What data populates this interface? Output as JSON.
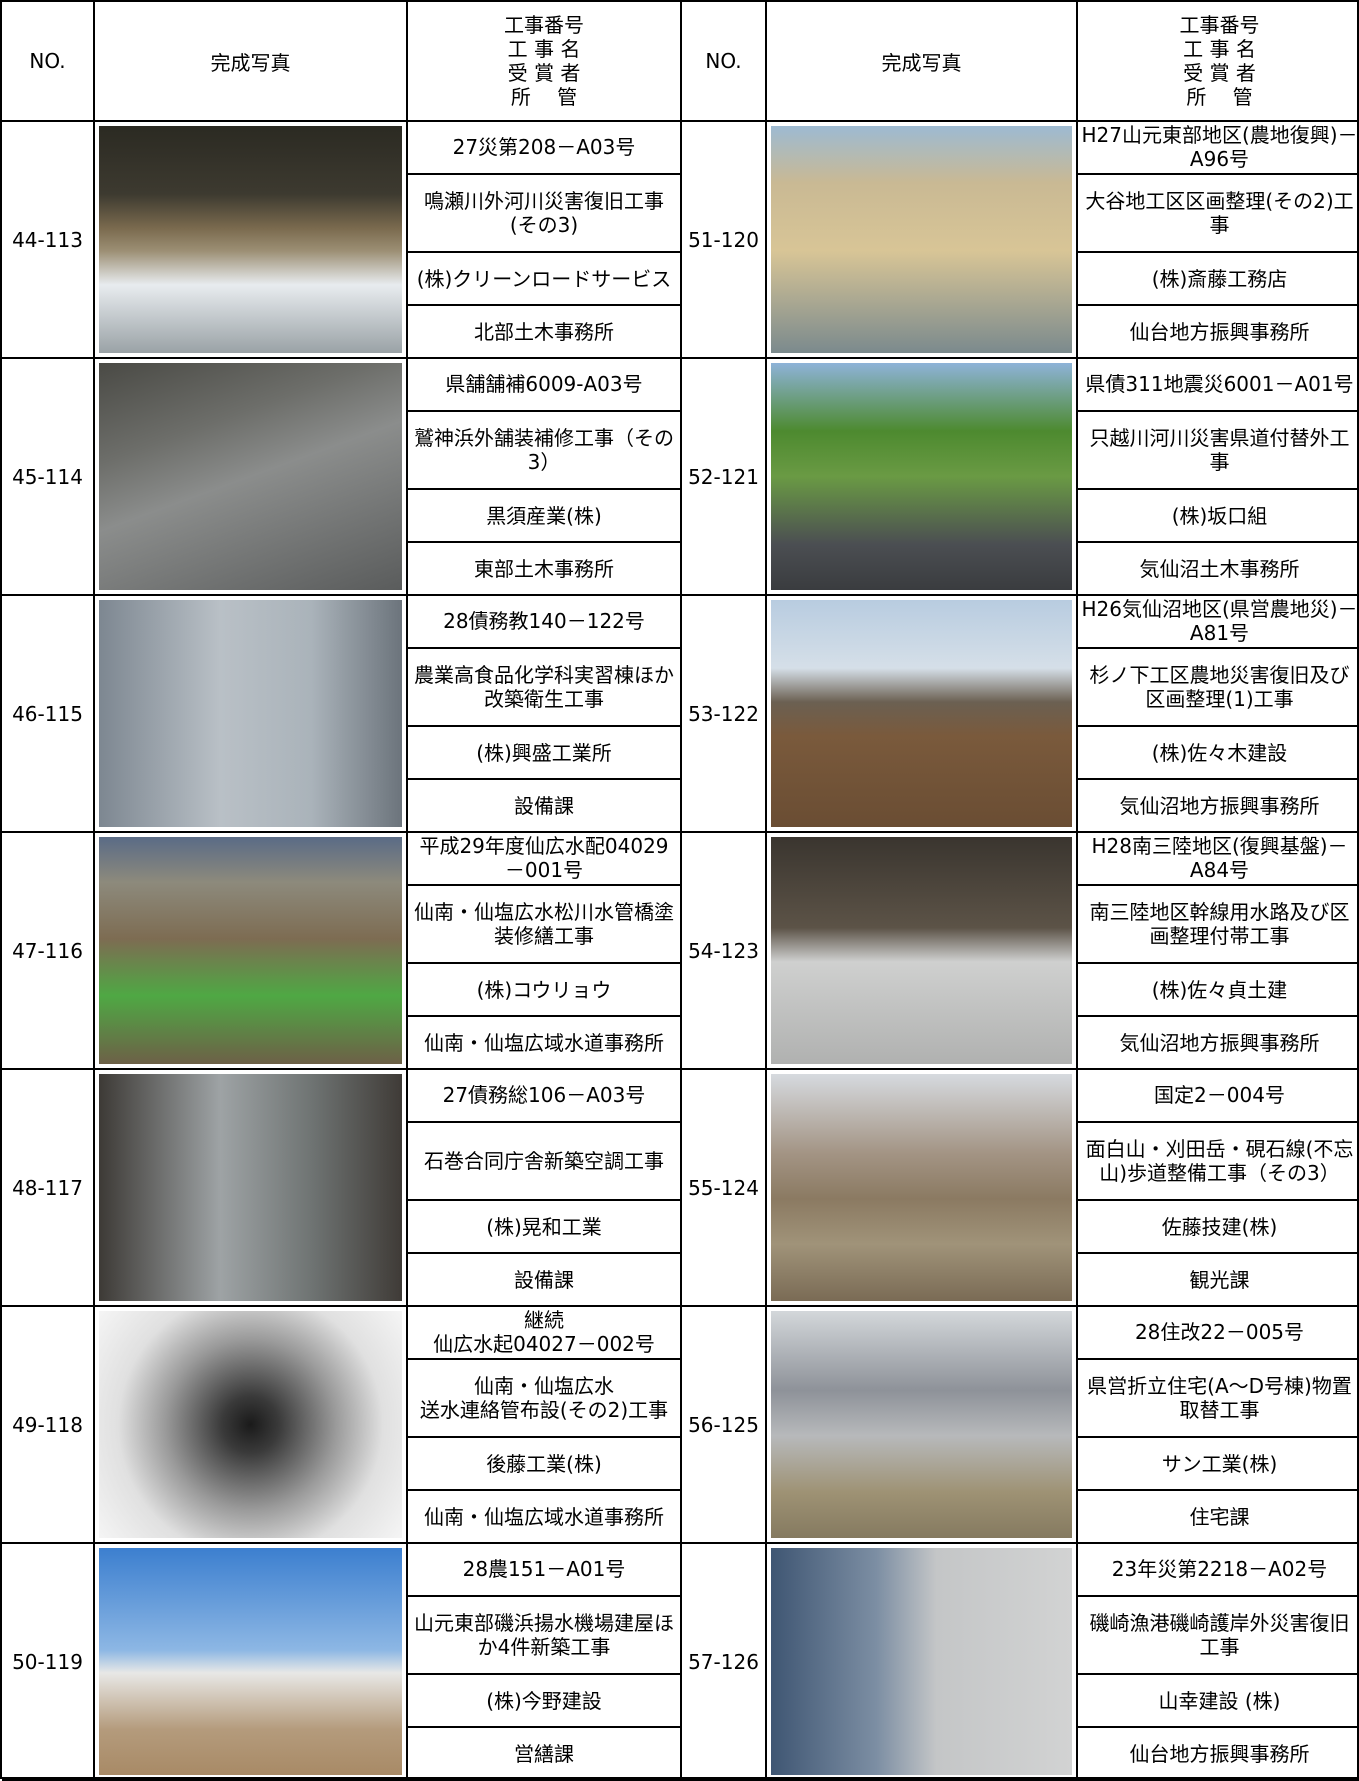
{
  "header": {
    "no": "NO.",
    "photo": "完成写真",
    "info": [
      "工事番号",
      "工 事 名",
      "受 賞 者",
      "所　 管"
    ]
  },
  "left": [
    {
      "no": "44-113",
      "number": "27災第208－A03号",
      "name": "鳴瀬川外河川災害復旧工事(その3)",
      "awardee": "(株)クリーンロードサービス",
      "office": "北部土木事務所"
    },
    {
      "no": "45-114",
      "number": "県舗舗補6009-A03号",
      "name": "鷲神浜外舗装補修工事（その3）",
      "awardee": "黒須産業(株)",
      "office": "東部土木事務所"
    },
    {
      "no": "46-115",
      "number": "28債務教140－122号",
      "name": "農業高食品化学科実習棟ほか改築衛生工事",
      "awardee": "(株)興盛工業所",
      "office": "設備課"
    },
    {
      "no": "47-116",
      "number": "平成29年度仙広水配04029－001号",
      "name": "仙南・仙塩広水松川水管橋塗装修繕工事",
      "awardee": "(株)コウリョウ",
      "office": "仙南・仙塩広域水道事務所"
    },
    {
      "no": "48-117",
      "number": "27債務総106－A03号",
      "name": "石巻合同庁舎新築空調工事",
      "awardee": "(株)晃和工業",
      "office": "設備課"
    },
    {
      "no": "49-118",
      "number": "継続\n仙広水起04027－002号",
      "name": "仙南・仙塩広水\n送水連絡管布設(その2)工事",
      "awardee": "後藤工業(株)",
      "office": "仙南・仙塩広域水道事務所"
    },
    {
      "no": "50-119",
      "number": "28農151－A01号",
      "name": "山元東部磯浜揚水機場建屋ほか4件新築工事",
      "awardee": "(株)今野建設",
      "office": "営繕課"
    }
  ],
  "right": [
    {
      "no": "51-120",
      "number": "H27山元東部地区(農地復興)－A96号",
      "name": "大谷地工区区画整理(その2)工事",
      "awardee": "(株)斎藤工務店",
      "office": "仙台地方振興事務所"
    },
    {
      "no": "52-121",
      "number": "県債311地震災6001－A01号",
      "name": "只越川河川災害県道付替外工事",
      "awardee": "(株)坂口組",
      "office": "気仙沼土木事務所"
    },
    {
      "no": "53-122",
      "number": "H26気仙沼地区(県営農地災)－A81号",
      "name": "杉ノ下工区農地災害復旧及び区画整理(1)工事",
      "awardee": "(株)佐々木建設",
      "office": "気仙沼地方振興事務所"
    },
    {
      "no": "54-123",
      "number": "H28南三陸地区(復興基盤)－A84号",
      "name": "南三陸地区幹線用水路及び区画整理付帯工事",
      "awardee": "(株)佐々貞土建",
      "office": "気仙沼地方振興事務所"
    },
    {
      "no": "55-124",
      "number": "国定2－004号",
      "name": "面白山・刈田岳・硯石線(不忘山)歩道整備工事（その3）",
      "awardee": "佐藤技建(株)",
      "office": "観光課"
    },
    {
      "no": "56-125",
      "number": "28住改22－005号",
      "name": "県営折立住宅(A～D号棟)物置取替工事",
      "awardee": "サン工業(株)",
      "office": "住宅課"
    },
    {
      "no": "57-126",
      "number": "23年災第2218－A02号",
      "name": "磯崎漁港磯崎護岸外災害復旧工事",
      "awardee": "山幸建設 (株)",
      "office": "仙台地方振興事務所"
    }
  ]
}
